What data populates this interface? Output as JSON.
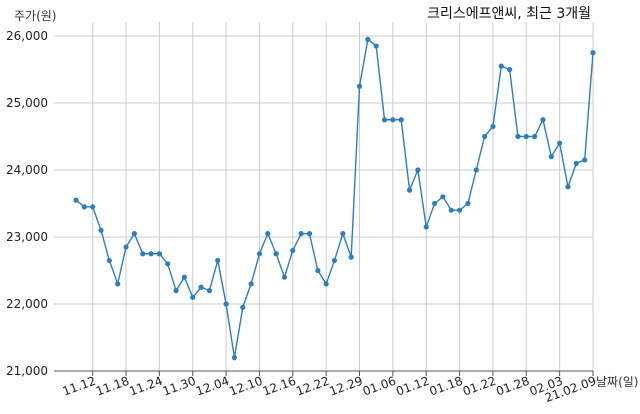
{
  "chart_data": {
    "type": "line",
    "title": "크리스에프앤씨, 최근 3개월",
    "ylabel": "주가(원)",
    "xlabel": "날짜(일)",
    "ylim": [
      21000,
      26200
    ],
    "y_ticks": [
      "21,000",
      "22,000",
      "23,000",
      "24,000",
      "25,000",
      "26,000"
    ],
    "y_tick_values": [
      21000,
      22000,
      23000,
      24000,
      25000,
      26000
    ],
    "x_tick_labels": [
      "11.12",
      "11.18",
      "11.24",
      "11.30",
      "12.04",
      "12.10",
      "12.16",
      "12.22",
      "12.29",
      "01.06",
      "01.12",
      "01.18",
      "01.22",
      "01.28",
      "02.03",
      "21.02.09"
    ],
    "x_tick_positions": [
      2,
      6,
      10,
      14,
      18,
      22,
      26,
      30,
      34,
      38,
      42,
      46,
      50,
      54,
      58,
      62
    ],
    "grid": true,
    "line_color": "#2e7ebc",
    "series": [
      {
        "values": [
          23550,
          23450,
          23450,
          23100,
          22650,
          22300,
          22850,
          23050,
          22750,
          22750,
          22750,
          22600,
          22200,
          22400,
          22100,
          22250,
          22200,
          22650,
          22000,
          21200,
          21950,
          22300,
          22750,
          23050,
          22750,
          22400,
          22800,
          23050,
          23050,
          22500,
          22300,
          22650,
          23050,
          22700,
          25250,
          25950,
          25850,
          24750,
          24750,
          24750,
          23700,
          24000,
          23150,
          23500,
          23600,
          23400,
          23400,
          23500,
          24000,
          24500,
          24650,
          25550,
          25500,
          24500,
          24500,
          24500,
          24750,
          24200,
          24400,
          23750,
          24100,
          24150,
          25750
        ]
      }
    ]
  }
}
